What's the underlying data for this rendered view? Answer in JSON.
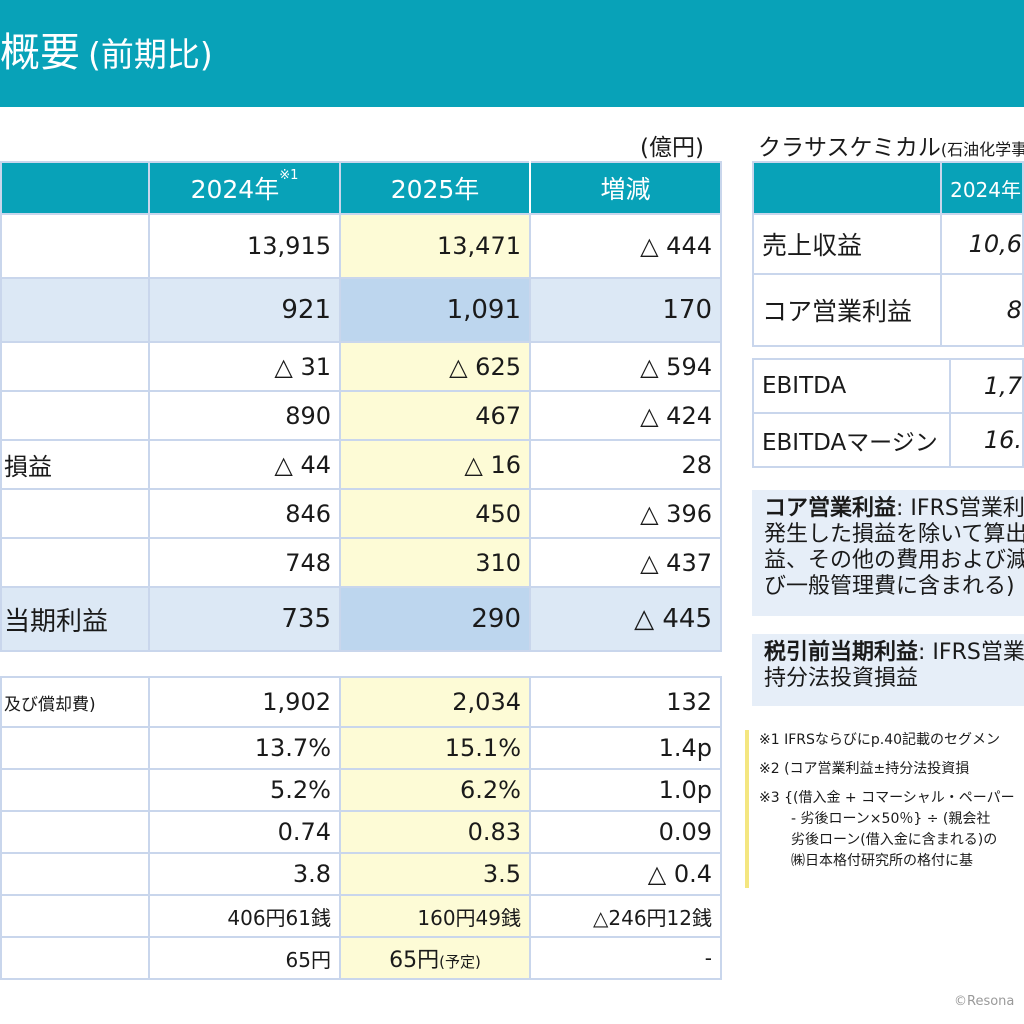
{
  "header": {
    "title": "概要",
    "subtitle": "(前期比)"
  },
  "main": {
    "unit": "(億円)",
    "columns": [
      {
        "label": "2024年",
        "sup": "※1"
      },
      {
        "label": "2025年",
        "sup": ""
      },
      {
        "label": "増減",
        "sup": ""
      }
    ],
    "rows": [
      {
        "label": "",
        "v2024": "13,915",
        "v2025": "13,471",
        "diff": "△ 444"
      },
      {
        "label": "",
        "v2024": "921",
        "v2025": "1,091",
        "diff": "170"
      },
      {
        "label": "",
        "v2024": "△ 31",
        "v2025": "△ 625",
        "diff": "△ 594"
      },
      {
        "label": "",
        "v2024": "890",
        "v2025": "467",
        "diff": "△ 424"
      },
      {
        "label": "損益",
        "v2024": "△ 44",
        "v2025": "△ 16",
        "diff": "28"
      },
      {
        "label": "",
        "v2024": "846",
        "v2025": "450",
        "diff": "△ 396"
      },
      {
        "label": "",
        "v2024": "748",
        "v2025": "310",
        "diff": "△ 437"
      },
      {
        "label": "当期利益",
        "v2024": "735",
        "v2025": "290",
        "diff": "△ 445"
      },
      {
        "label": "及び償却費)",
        "v2024": "1,902",
        "v2025": "2,034",
        "diff": "132"
      },
      {
        "label": "",
        "v2024": "13.7%",
        "v2025": "15.1%",
        "diff": "1.4p"
      },
      {
        "label": "",
        "v2024": "5.2%",
        "v2025": "6.2%",
        "diff": "1.0p"
      },
      {
        "label": "",
        "v2024": "0.74",
        "v2025": "0.83",
        "diff": "0.09"
      },
      {
        "label": "",
        "v2024": "3.8",
        "v2025": "3.5",
        "diff": "△ 0.4"
      },
      {
        "label": "",
        "v2024": "406円61銭",
        "v2025": "160円49銭",
        "diff": "△246円12銭"
      },
      {
        "label": "",
        "v2024": "65円",
        "v2025": "65円",
        "v2025_note": "(予定)",
        "diff": "-"
      }
    ]
  },
  "side": {
    "title": "クラサスケミカル",
    "title_small": "(石油化学事業",
    "header_col": "2024年",
    "rows": [
      {
        "label": "売上収益",
        "value": "10,6"
      },
      {
        "label": "コア営業利益",
        "value": "8"
      }
    ],
    "rows2": [
      {
        "label": "EBITDA",
        "value": "1,7"
      },
      {
        "label": "EBITDAマージン",
        "value": "16."
      }
    ]
  },
  "definitions": [
    {
      "term": "コア営業利益",
      "lines": [
        ": IFRS営業利",
        "発生した損益を除いて算出",
        "益、その他の費用および減",
        "び一般管理費に含まれる)"
      ]
    },
    {
      "term": "税引前当期利益",
      "lines": [
        ": IFRS営業",
        "持分法投資損益"
      ]
    }
  ],
  "notes": {
    "n1": "※1 IFRSならびにp.40記載のセグメン",
    "n2": "※2 (コア営業利益±持分法投資損",
    "n3a": "※3 {(借入金 + コマーシャル・ペーパー",
    "n3b": "- 劣後ローン×50％} ÷ (親会社",
    "n3c": "劣後ローン(借入金に含まれる)の",
    "n3d": "㈱日本格付研究所の格付に基"
  },
  "copyright": "©Resona"
}
